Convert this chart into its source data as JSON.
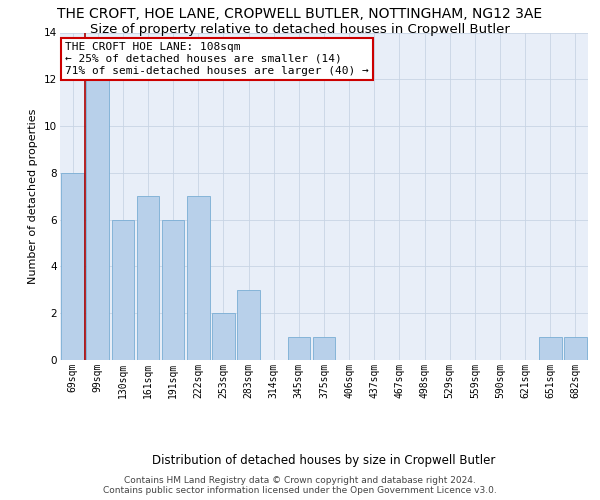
{
  "title": "THE CROFT, HOE LANE, CROPWELL BUTLER, NOTTINGHAM, NG12 3AE",
  "subtitle": "Size of property relative to detached houses in Cropwell Butler",
  "xlabel": "Distribution of detached houses by size in Cropwell Butler",
  "ylabel": "Number of detached properties",
  "categories": [
    "69sqm",
    "99sqm",
    "130sqm",
    "161sqm",
    "191sqm",
    "222sqm",
    "253sqm",
    "283sqm",
    "314sqm",
    "345sqm",
    "375sqm",
    "406sqm",
    "437sqm",
    "467sqm",
    "498sqm",
    "529sqm",
    "559sqm",
    "590sqm",
    "621sqm",
    "651sqm",
    "682sqm"
  ],
  "values": [
    8,
    12,
    6,
    7,
    6,
    7,
    2,
    3,
    0,
    1,
    1,
    0,
    0,
    0,
    0,
    0,
    0,
    0,
    0,
    1,
    1
  ],
  "bar_color": "#b8d0ea",
  "bar_edge_color": "#7aadd4",
  "vline_x": 0.5,
  "vline_color": "#aa0000",
  "annotation_text": "THE CROFT HOE LANE: 108sqm\n← 25% of detached houses are smaller (14)\n71% of semi-detached houses are larger (40) →",
  "annotation_box_color": "#ffffff",
  "annotation_border_color": "#cc0000",
  "ylim": [
    0,
    14
  ],
  "yticks": [
    0,
    2,
    4,
    6,
    8,
    10,
    12,
    14
  ],
  "plot_bg_color": "#e8eef8",
  "footer": "Contains HM Land Registry data © Crown copyright and database right 2024.\nContains public sector information licensed under the Open Government Licence v3.0.",
  "title_fontsize": 10,
  "subtitle_fontsize": 9.5,
  "xlabel_fontsize": 8.5,
  "ylabel_fontsize": 8,
  "tick_fontsize": 7,
  "footer_fontsize": 6.5,
  "annot_fontsize": 8
}
